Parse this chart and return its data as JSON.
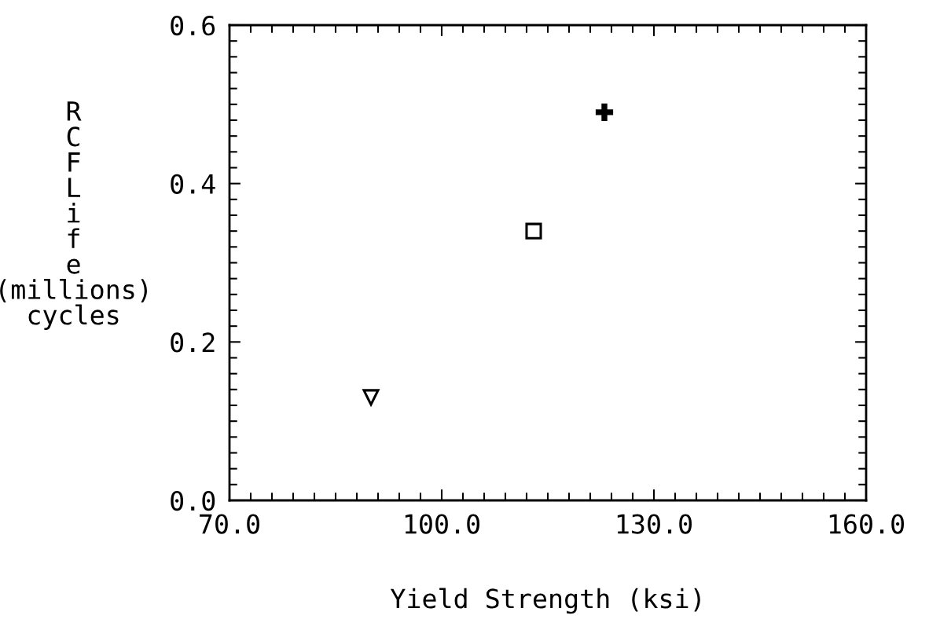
{
  "chart_data": {
    "type": "scatter",
    "xlabel": "Yield Strength (ksi)",
    "ylabel": "RCF Life (millions) cycles",
    "series": [
      {
        "x": [
          90
        ],
        "values": [
          0.13
        ],
        "marker": "triangle",
        "color": "#000000"
      },
      {
        "x": [
          113
        ],
        "values": [
          0.34
        ],
        "marker": "square",
        "color": "#000000"
      },
      {
        "x": [
          123
        ],
        "values": [
          0.49
        ],
        "marker": "cross",
        "color": "#000000"
      }
    ],
    "xlim": [
      70,
      160
    ],
    "xticks": [
      {
        "value": 70,
        "label": "70.0"
      },
      {
        "value": 100,
        "label": "100.0"
      },
      {
        "value": 130,
        "label": "130.0"
      },
      {
        "value": 160,
        "label": "160.0"
      }
    ],
    "ylim": [
      0,
      0.6
    ],
    "yticks": [
      {
        "value": 0,
        "label": "0.0"
      },
      {
        "value": 0.2,
        "label": "0.2"
      },
      {
        "value": 0.4,
        "label": "0.4"
      },
      {
        "value": 0.6,
        "label": "0.6"
      }
    ],
    "grid": false,
    "legend": false
  }
}
